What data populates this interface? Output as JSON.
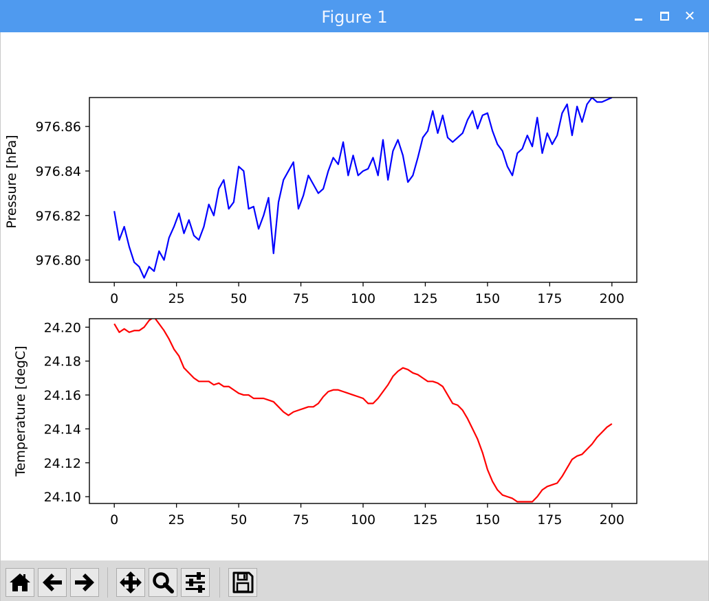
{
  "window": {
    "title": "Figure 1",
    "controls": {
      "minimize": "_",
      "maximize": "□",
      "close": "✕"
    }
  },
  "toolbar": {
    "buttons": [
      {
        "name": "home",
        "icon": "home-icon"
      },
      {
        "name": "back",
        "icon": "arrow-left-icon"
      },
      {
        "name": "forward",
        "icon": "arrow-right-icon"
      },
      {
        "name": "pan",
        "icon": "move-icon"
      },
      {
        "name": "zoom",
        "icon": "magnifier-icon"
      },
      {
        "name": "configure-subplots",
        "icon": "sliders-icon"
      },
      {
        "name": "save",
        "icon": "floppy-disk-icon"
      }
    ]
  },
  "chart_data": [
    {
      "type": "line",
      "xlabel": "",
      "ylabel": "Pressure [hPa]",
      "xlim": [
        -10,
        210
      ],
      "ylim": [
        976.79,
        976.873
      ],
      "xticks": [
        0,
        25,
        50,
        75,
        100,
        125,
        150,
        175,
        200
      ],
      "xtick_labels": [
        "0",
        "25",
        "50",
        "75",
        "100",
        "125",
        "150",
        "175",
        "200"
      ],
      "yticks": [
        976.8,
        976.82,
        976.84,
        976.86
      ],
      "ytick_labels": [
        "976.80",
        "976.82",
        "976.84",
        "976.86"
      ],
      "grid": false,
      "series": [
        {
          "color": "#0000ff",
          "x": [
            0,
            2,
            4,
            6,
            8,
            10,
            12,
            14,
            16,
            18,
            20,
            22,
            24,
            26,
            28,
            30,
            32,
            34,
            36,
            38,
            40,
            42,
            44,
            46,
            48,
            50,
            52,
            54,
            56,
            58,
            60,
            62,
            64,
            66,
            68,
            70,
            72,
            74,
            76,
            78,
            80,
            82,
            84,
            86,
            88,
            90,
            92,
            94,
            96,
            98,
            100,
            102,
            104,
            106,
            108,
            110,
            112,
            114,
            116,
            118,
            120,
            122,
            124,
            126,
            128,
            130,
            132,
            134,
            136,
            138,
            140,
            142,
            144,
            146,
            148,
            150,
            152,
            154,
            156,
            158,
            160,
            162,
            164,
            166,
            168,
            170,
            172,
            174,
            176,
            178,
            180,
            182,
            184,
            186,
            188,
            190,
            192,
            194,
            196,
            198,
            200
          ],
          "y": [
            976.822,
            976.809,
            976.815,
            976.806,
            976.799,
            976.797,
            976.792,
            976.797,
            976.795,
            976.804,
            976.8,
            976.81,
            976.815,
            976.821,
            976.812,
            976.818,
            976.811,
            976.809,
            976.815,
            976.825,
            976.82,
            976.832,
            976.836,
            976.823,
            976.826,
            976.842,
            976.84,
            976.823,
            976.824,
            976.814,
            976.82,
            976.828,
            976.803,
            976.826,
            976.836,
            976.84,
            976.844,
            976.823,
            976.829,
            976.838,
            976.834,
            976.83,
            976.832,
            976.84,
            976.846,
            976.843,
            976.853,
            976.838,
            976.847,
            976.838,
            976.84,
            976.841,
            976.846,
            976.838,
            976.854,
            976.836,
            976.849,
            976.854,
            976.847,
            976.835,
            976.838,
            976.846,
            976.855,
            976.858,
            976.867,
            976.857,
            976.865,
            976.855,
            976.853,
            976.855,
            976.857,
            976.863,
            976.867,
            976.859,
            976.865,
            976.866,
            976.858,
            976.852,
            976.849,
            976.842,
            976.838,
            976.848,
            976.85,
            976.856,
            976.851,
            976.864,
            976.848,
            976.857,
            976.852,
            976.856,
            976.866,
            976.87,
            976.856,
            976.869,
            976.862,
            976.87,
            976.873,
            976.871,
            976.871,
            976.872,
            976.873
          ]
        }
      ]
    },
    {
      "type": "line",
      "xlabel": "",
      "ylabel": "Temperature [degC]",
      "xlim": [
        -10,
        210
      ],
      "ylim": [
        24.096,
        24.205
      ],
      "xticks": [
        0,
        25,
        50,
        75,
        100,
        125,
        150,
        175,
        200
      ],
      "xtick_labels": [
        "0",
        "25",
        "50",
        "75",
        "100",
        "125",
        "150",
        "175",
        "200"
      ],
      "yticks": [
        24.1,
        24.12,
        24.14,
        24.16,
        24.18,
        24.2
      ],
      "ytick_labels": [
        "24.10",
        "24.12",
        "24.14",
        "24.16",
        "24.18",
        "24.20"
      ],
      "grid": false,
      "series": [
        {
          "color": "#ff0000",
          "x": [
            0,
            2,
            4,
            6,
            8,
            10,
            12,
            14,
            16,
            18,
            20,
            22,
            24,
            26,
            28,
            30,
            32,
            34,
            36,
            38,
            40,
            42,
            44,
            46,
            48,
            50,
            52,
            54,
            56,
            58,
            60,
            62,
            64,
            66,
            68,
            70,
            72,
            74,
            76,
            78,
            80,
            82,
            84,
            86,
            88,
            90,
            92,
            94,
            96,
            98,
            100,
            102,
            104,
            106,
            108,
            110,
            112,
            114,
            116,
            118,
            120,
            122,
            124,
            126,
            128,
            130,
            132,
            134,
            136,
            138,
            140,
            142,
            144,
            146,
            148,
            150,
            152,
            154,
            156,
            158,
            160,
            162,
            164,
            166,
            168,
            170,
            172,
            174,
            176,
            178,
            180,
            182,
            184,
            186,
            188,
            190,
            192,
            194,
            196,
            198,
            200
          ],
          "y": [
            24.202,
            24.197,
            24.199,
            24.197,
            24.198,
            24.198,
            24.2,
            24.204,
            24.206,
            24.202,
            24.198,
            24.193,
            24.187,
            24.183,
            24.176,
            24.173,
            24.17,
            24.168,
            24.168,
            24.168,
            24.166,
            24.167,
            24.165,
            24.165,
            24.163,
            24.161,
            24.16,
            24.16,
            24.158,
            24.158,
            24.158,
            24.157,
            24.156,
            24.153,
            24.15,
            24.148,
            24.15,
            24.151,
            24.152,
            24.153,
            24.153,
            24.155,
            24.159,
            24.162,
            24.163,
            24.163,
            24.162,
            24.161,
            24.16,
            24.159,
            24.158,
            24.155,
            24.155,
            24.158,
            24.162,
            24.166,
            24.171,
            24.174,
            24.176,
            24.175,
            24.173,
            24.172,
            24.17,
            24.168,
            24.168,
            24.167,
            24.165,
            24.16,
            24.155,
            24.154,
            24.151,
            24.146,
            24.14,
            24.134,
            24.126,
            24.116,
            24.109,
            24.104,
            24.101,
            24.1,
            24.099,
            24.097,
            24.097,
            24.097,
            24.097,
            24.1,
            24.104,
            24.106,
            24.107,
            24.108,
            24.112,
            24.117,
            24.122,
            24.124,
            24.125,
            24.128,
            24.131,
            24.135,
            24.138,
            24.141,
            24.143
          ]
        }
      ]
    }
  ]
}
